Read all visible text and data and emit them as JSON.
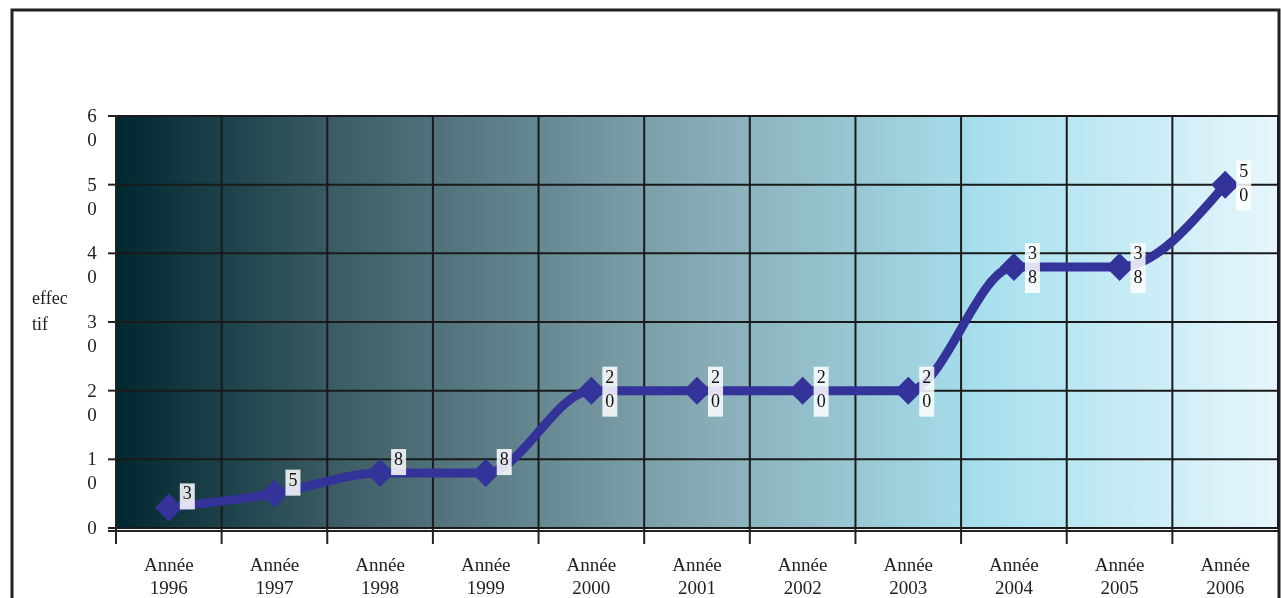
{
  "chart_data": {
    "type": "line",
    "ylabel": "effectif",
    "categories": [
      "Année 1996",
      "Année 1997",
      "Année 1998",
      "Année 1999",
      "Année 2000",
      "Année 2001",
      "Année 2002",
      "Année 2003",
      "Année 2004",
      "Année 2005",
      "Année 2006"
    ],
    "series": [
      {
        "color": "#333399",
        "values": [
          3,
          5,
          8,
          8,
          20,
          20,
          20,
          20,
          38,
          38,
          50
        ]
      }
    ],
    "ylim": [
      0,
      60
    ],
    "yticks": [
      0,
      10,
      20,
      30,
      40,
      50,
      60
    ],
    "grid": true,
    "marker": "diamond",
    "line_style": "solid",
    "data_labels": true
  }
}
